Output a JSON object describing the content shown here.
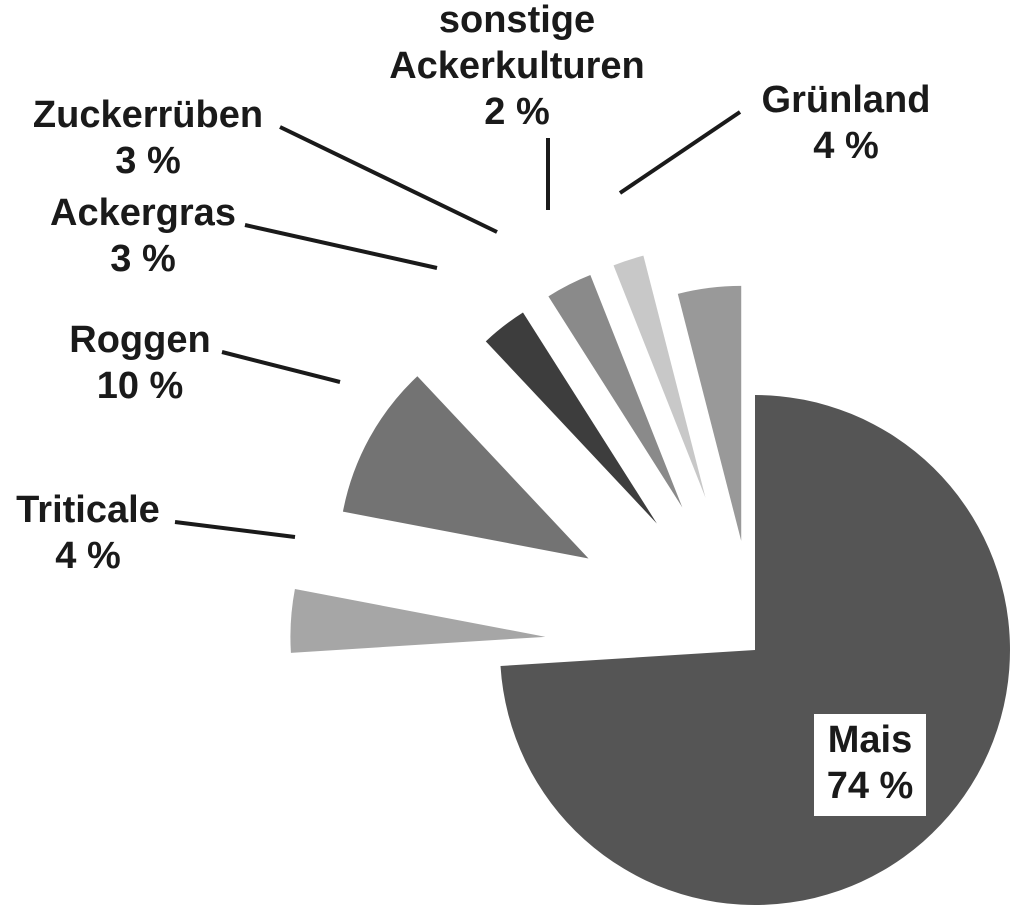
{
  "chart_data": {
    "type": "pie",
    "exploded": true,
    "slices": [
      {
        "name": "Mais",
        "value": 74,
        "label": "74 %",
        "color": "#555555"
      },
      {
        "name": "Triticale",
        "value": 4,
        "label": "4 %",
        "color": "#a6a6a6"
      },
      {
        "name": "Roggen",
        "value": 10,
        "label": "10 %",
        "color": "#737373"
      },
      {
        "name": "Ackergras",
        "value": 3,
        "label": "3 %",
        "color": "#3d3d3d"
      },
      {
        "name": "Zuckerrüben",
        "value": 3,
        "label": "3 %",
        "color": "#8a8a8a"
      },
      {
        "name": "sonstige Ackerkulturen",
        "name_lines": [
          "sonstige",
          "Ackerkulturen"
        ],
        "value": 2,
        "label": "2 %",
        "color": "#c8c8c8"
      },
      {
        "name": "Grünland",
        "value": 4,
        "label": "4 %",
        "color": "#999999"
      }
    ]
  }
}
